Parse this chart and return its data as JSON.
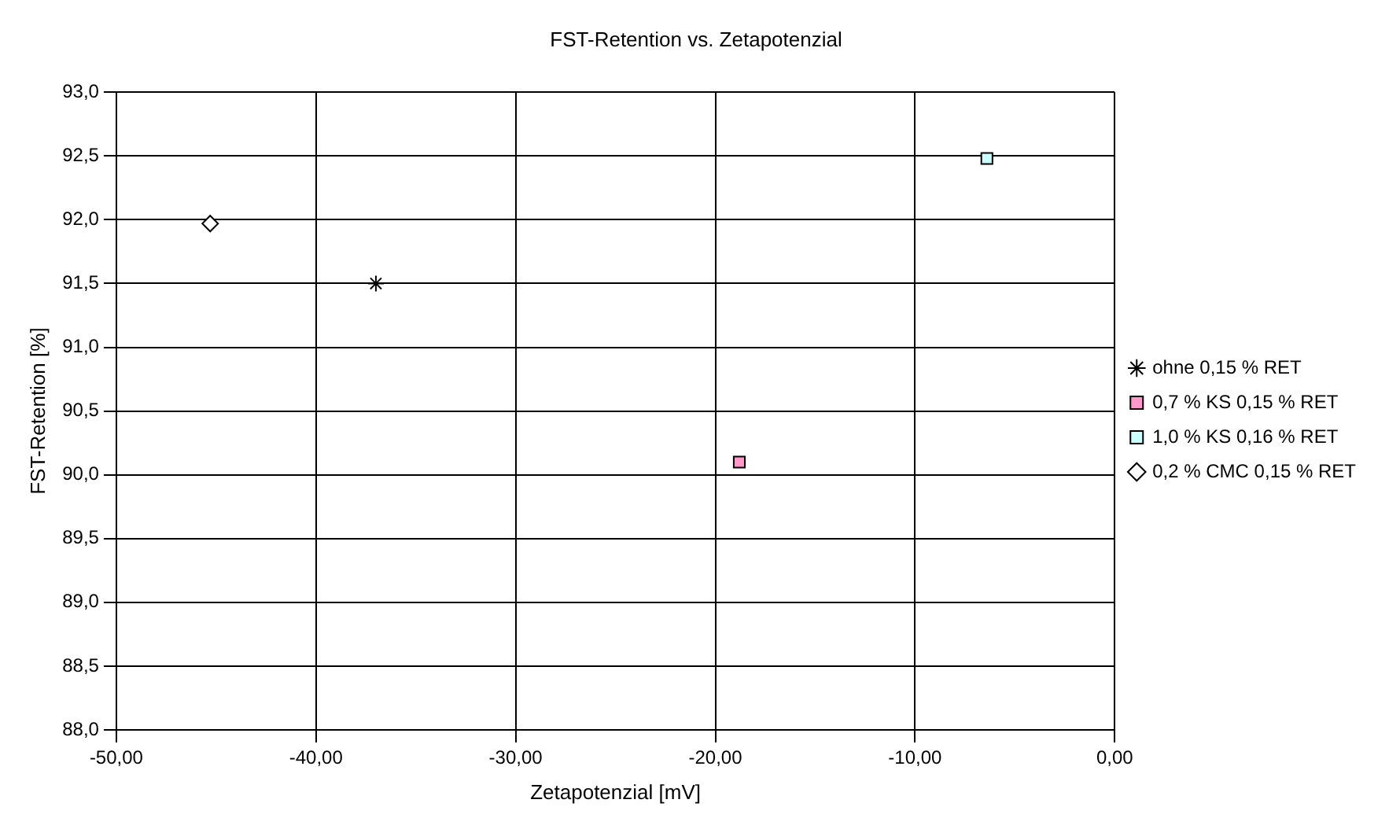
{
  "chart_data": {
    "type": "scatter",
    "title": "FST-Retention vs. Zetapotenzial",
    "xlabel": "Zetapotenzial [mV]",
    "ylabel": "FST-Retention [%]",
    "series": [
      {
        "name": "ohne 0,15 % RET",
        "color": "#000000",
        "marker": "cross",
        "x": [
          -37.0
        ],
        "values": [
          91.5
        ]
      },
      {
        "name": "0,7 % KS 0,15 % RET",
        "color": "#ff99cc",
        "marker": "square",
        "x": [
          -18.8
        ],
        "values": [
          90.1
        ]
      },
      {
        "name": "1,0 % KS 0,16 % RET",
        "color": "#ccffff",
        "marker": "square",
        "x": [
          -6.4
        ],
        "values": [
          92.48
        ]
      },
      {
        "name": "0,2 % CMC 0,15 % RET",
        "color": "#ffffff",
        "marker": "diamond",
        "x": [
          -45.3
        ],
        "values": [
          91.97
        ]
      }
    ],
    "xlim": [
      -50,
      0
    ],
    "xticks": [
      {
        "value": -50,
        "label": "-50,00"
      },
      {
        "value": -40,
        "label": "-40,00"
      },
      {
        "value": -30,
        "label": "-30,00"
      },
      {
        "value": -20,
        "label": "-20,00"
      },
      {
        "value": -10,
        "label": "-10,00"
      },
      {
        "value": 0,
        "label": "0,00"
      }
    ],
    "ylim": [
      88,
      93
    ],
    "yticks": [
      {
        "value": 88,
        "label": "88,0"
      },
      {
        "value": 88.5,
        "label": "88,5"
      },
      {
        "value": 89,
        "label": "89,0"
      },
      {
        "value": 89.5,
        "label": "89,5"
      },
      {
        "value": 90,
        "label": "90,0"
      },
      {
        "value": 90.5,
        "label": "90,5"
      },
      {
        "value": 91,
        "label": "91,0"
      },
      {
        "value": 91.5,
        "label": "91,5"
      },
      {
        "value": 92,
        "label": "92,0"
      },
      {
        "value": 92.5,
        "label": "92,5"
      },
      {
        "value": 93,
        "label": "93,0"
      }
    ],
    "grid": true,
    "legend": "right"
  }
}
